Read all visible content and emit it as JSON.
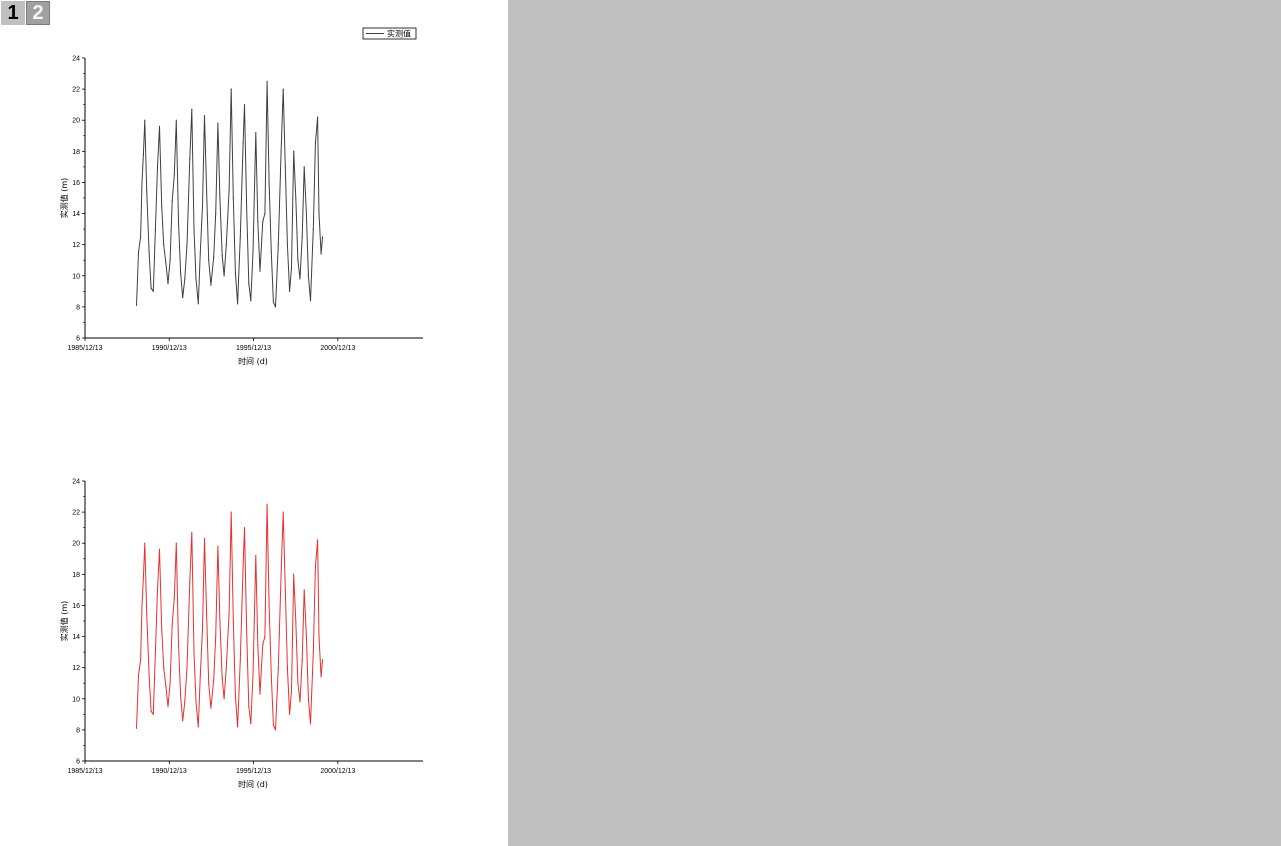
{
  "page_tabs": [
    {
      "label": "1",
      "active": true
    },
    {
      "label": "2",
      "active": false
    }
  ],
  "colors": {
    "workspace": "#c0c0c0",
    "page": "#ffffff",
    "series_top": "#404040",
    "series_bottom": "#e83030"
  },
  "chart_data": [
    {
      "type": "line",
      "title": "",
      "xlabel": "时间 (d)",
      "ylabel": "实测值 (m)",
      "x_ticks": [
        "1985/12/13",
        "1990/12/13",
        "1995/12/13",
        "2000/12/13"
      ],
      "x_range": [
        "1985/12/13",
        "2006/01/01"
      ],
      "ylim": [
        6,
        24
      ],
      "y_ticks": [
        "6",
        "8",
        "10",
        "12",
        "14",
        "16",
        "18",
        "20",
        "22",
        "24"
      ],
      "grid": false,
      "legend": {
        "position": "top-right",
        "entries": [
          "实测值"
        ]
      },
      "series": [
        {
          "name": "实测值",
          "color": "#404040",
          "points": [
            [
              "1989/01/01",
              8.1
            ],
            [
              "1989/02/15",
              11.5
            ],
            [
              "1989/04/01",
              12.5
            ],
            [
              "1989/05/01",
              16.0
            ],
            [
              "1989/06/01",
              17.8
            ],
            [
              "1989/07/01",
              20.0
            ],
            [
              "1989/08/10",
              15.5
            ],
            [
              "1989/10/01",
              11.5
            ],
            [
              "1989/11/15",
              9.2
            ],
            [
              "1990/01/01",
              9.0
            ],
            [
              "1990/02/15",
              13.0
            ],
            [
              "1990/04/01",
              17.0
            ],
            [
              "1990/05/15",
              19.6
            ],
            [
              "1990/07/01",
              14.5
            ],
            [
              "1990/08/15",
              12.0
            ],
            [
              "1990/10/01",
              10.8
            ],
            [
              "1990/11/15",
              9.5
            ],
            [
              "1991/01/01",
              11.0
            ],
            [
              "1991/02/15",
              14.8
            ],
            [
              "1991/04/01",
              16.5
            ],
            [
              "1991/05/15",
              20.0
            ],
            [
              "1991/07/01",
              13.5
            ],
            [
              "1991/08/15",
              10.2
            ],
            [
              "1991/10/01",
              8.6
            ],
            [
              "1991/11/15",
              9.8
            ],
            [
              "1992/01/01",
              12.0
            ],
            [
              "1992/03/01",
              17.5
            ],
            [
              "1992/04/15",
              20.7
            ],
            [
              "1992/06/01",
              13.0
            ],
            [
              "1992/07/15",
              9.8
            ],
            [
              "1992/09/01",
              8.2
            ],
            [
              "1992/10/15",
              11.5
            ],
            [
              "1992/12/01",
              14.5
            ],
            [
              "1993/01/15",
              20.3
            ],
            [
              "1993/03/01",
              15.5
            ],
            [
              "1993/04/15",
              11.0
            ],
            [
              "1993/06/01",
              9.4
            ],
            [
              "1993/08/01",
              11.2
            ],
            [
              "1993/09/15",
              14.0
            ],
            [
              "1993/11/01",
              19.8
            ],
            [
              "1993/12/15",
              15.0
            ],
            [
              "1994/02/01",
              11.3
            ],
            [
              "1994/03/15",
              10.0
            ],
            [
              "1994/05/01",
              12.0
            ],
            [
              "1994/07/01",
              15.5
            ],
            [
              "1994/08/15",
              22.0
            ],
            [
              "1994/10/01",
              15.0
            ],
            [
              "1994/11/15",
              10.2
            ],
            [
              "1995/01/01",
              8.2
            ],
            [
              "1995/03/01",
              12.5
            ],
            [
              "1995/05/01",
              18.5
            ],
            [
              "1995/06/01",
              21.0
            ],
            [
              "1995/07/15",
              14.5
            ],
            [
              "1995/09/01",
              9.5
            ],
            [
              "1995/10/15",
              8.4
            ],
            [
              "1995/12/01",
              11.5
            ],
            [
              "1996/02/01",
              19.2
            ],
            [
              "1996/03/15",
              13.5
            ],
            [
              "1996/05/01",
              10.3
            ],
            [
              "1996/07/01",
              13.5
            ],
            [
              "1996/08/15",
              14.0
            ],
            [
              "1996/10/01",
              22.5
            ],
            [
              "1996/11/15",
              16.0
            ],
            [
              "1997/01/01",
              11.5
            ],
            [
              "1997/02/15",
              8.3
            ],
            [
              "1997/04/01",
              8.0
            ],
            [
              "1997/06/01",
              12.0
            ],
            [
              "1997/08/01",
              18.0
            ],
            [
              "1997/09/15",
              22.0
            ],
            [
              "1997/11/01",
              17.0
            ],
            [
              "1997/12/15",
              12.0
            ],
            [
              "1998/02/01",
              9.0
            ],
            [
              "1998/03/15",
              10.5
            ],
            [
              "1998/05/01",
              18.0
            ],
            [
              "1998/06/15",
              15.0
            ],
            [
              "1998/08/01",
              11.0
            ],
            [
              "1998/09/15",
              9.8
            ],
            [
              "1998/11/01",
              12.5
            ],
            [
              "1998/12/15",
              17.0
            ],
            [
              "1999/02/01",
              14.0
            ],
            [
              "1999/03/15",
              10.0
            ],
            [
              "1999/05/01",
              8.4
            ],
            [
              "1999/07/01",
              13.0
            ],
            [
              "1999/08/15",
              18.5
            ],
            [
              "1999/10/01",
              20.2
            ],
            [
              "1999/11/01",
              14.0
            ],
            [
              "1999/12/15",
              11.4
            ],
            [
              "2000/01/15",
              12.5
            ]
          ]
        }
      ]
    },
    {
      "type": "line",
      "title": "",
      "xlabel": "时间 (d)",
      "ylabel": "实测值 (m)",
      "x_ticks": [
        "1985/12/13",
        "1990/12/13",
        "1995/12/13",
        "2000/12/13"
      ],
      "x_range": [
        "1985/12/13",
        "2006/01/01"
      ],
      "ylim": [
        6,
        24
      ],
      "y_ticks": [
        "6",
        "8",
        "10",
        "12",
        "14",
        "16",
        "18",
        "20",
        "22",
        "24"
      ],
      "grid": false,
      "series": [
        {
          "color": "#e83030",
          "points": [
            [
              "1989/01/01",
              8.1
            ],
            [
              "1989/02/15",
              11.5
            ],
            [
              "1989/04/01",
              12.5
            ],
            [
              "1989/05/01",
              16.0
            ],
            [
              "1989/06/01",
              17.8
            ],
            [
              "1989/07/01",
              20.0
            ],
            [
              "1989/08/10",
              15.5
            ],
            [
              "1989/10/01",
              11.5
            ],
            [
              "1989/11/15",
              9.2
            ],
            [
              "1990/01/01",
              9.0
            ],
            [
              "1990/02/15",
              13.0
            ],
            [
              "1990/04/01",
              17.0
            ],
            [
              "1990/05/15",
              19.6
            ],
            [
              "1990/07/01",
              14.5
            ],
            [
              "1990/08/15",
              12.0
            ],
            [
              "1990/10/01",
              10.8
            ],
            [
              "1990/11/15",
              9.5
            ],
            [
              "1991/01/01",
              11.0
            ],
            [
              "1991/02/15",
              14.8
            ],
            [
              "1991/04/01",
              16.5
            ],
            [
              "1991/05/15",
              20.0
            ],
            [
              "1991/07/01",
              13.5
            ],
            [
              "1991/08/15",
              10.2
            ],
            [
              "1991/10/01",
              8.6
            ],
            [
              "1991/11/15",
              9.8
            ],
            [
              "1992/01/01",
              12.0
            ],
            [
              "1992/03/01",
              17.5
            ],
            [
              "1992/04/15",
              20.7
            ],
            [
              "1992/06/01",
              13.0
            ],
            [
              "1992/07/15",
              9.8
            ],
            [
              "1992/09/01",
              8.2
            ],
            [
              "1992/10/15",
              11.5
            ],
            [
              "1992/12/01",
              14.5
            ],
            [
              "1993/01/15",
              20.3
            ],
            [
              "1993/03/01",
              15.5
            ],
            [
              "1993/04/15",
              11.0
            ],
            [
              "1993/06/01",
              9.4
            ],
            [
              "1993/08/01",
              11.2
            ],
            [
              "1993/09/15",
              14.0
            ],
            [
              "1993/11/01",
              19.8
            ],
            [
              "1993/12/15",
              15.0
            ],
            [
              "1994/02/01",
              11.3
            ],
            [
              "1994/03/15",
              10.0
            ],
            [
              "1994/05/01",
              12.0
            ],
            [
              "1994/07/01",
              15.5
            ],
            [
              "1994/08/15",
              22.0
            ],
            [
              "1994/10/01",
              15.0
            ],
            [
              "1994/11/15",
              10.2
            ],
            [
              "1995/01/01",
              8.2
            ],
            [
              "1995/03/01",
              12.5
            ],
            [
              "1995/05/01",
              18.5
            ],
            [
              "1995/06/01",
              21.0
            ],
            [
              "1995/07/15",
              14.5
            ],
            [
              "1995/09/01",
              9.5
            ],
            [
              "1995/10/15",
              8.4
            ],
            [
              "1995/12/01",
              11.5
            ],
            [
              "1996/02/01",
              19.2
            ],
            [
              "1996/03/15",
              13.5
            ],
            [
              "1996/05/01",
              10.3
            ],
            [
              "1996/07/01",
              13.5
            ],
            [
              "1996/08/15",
              14.0
            ],
            [
              "1996/10/01",
              22.5
            ],
            [
              "1996/11/15",
              16.0
            ],
            [
              "1997/01/01",
              11.5
            ],
            [
              "1997/02/15",
              8.3
            ],
            [
              "1997/04/01",
              8.0
            ],
            [
              "1997/06/01",
              12.0
            ],
            [
              "1997/08/01",
              18.0
            ],
            [
              "1997/09/15",
              22.0
            ],
            [
              "1997/11/01",
              17.0
            ],
            [
              "1997/12/15",
              12.0
            ],
            [
              "1998/02/01",
              9.0
            ],
            [
              "1998/03/15",
              10.5
            ],
            [
              "1998/05/01",
              18.0
            ],
            [
              "1998/06/15",
              15.0
            ],
            [
              "1998/08/01",
              11.0
            ],
            [
              "1998/09/15",
              9.8
            ],
            [
              "1998/11/01",
              12.5
            ],
            [
              "1998/12/15",
              17.0
            ],
            [
              "1999/02/01",
              14.0
            ],
            [
              "1999/03/15",
              10.0
            ],
            [
              "1999/05/01",
              8.4
            ],
            [
              "1999/07/01",
              13.0
            ],
            [
              "1999/08/15",
              18.5
            ],
            [
              "1999/10/01",
              20.2
            ],
            [
              "1999/11/01",
              14.0
            ],
            [
              "1999/12/15",
              11.4
            ],
            [
              "2000/01/15",
              12.5
            ]
          ]
        }
      ]
    }
  ]
}
